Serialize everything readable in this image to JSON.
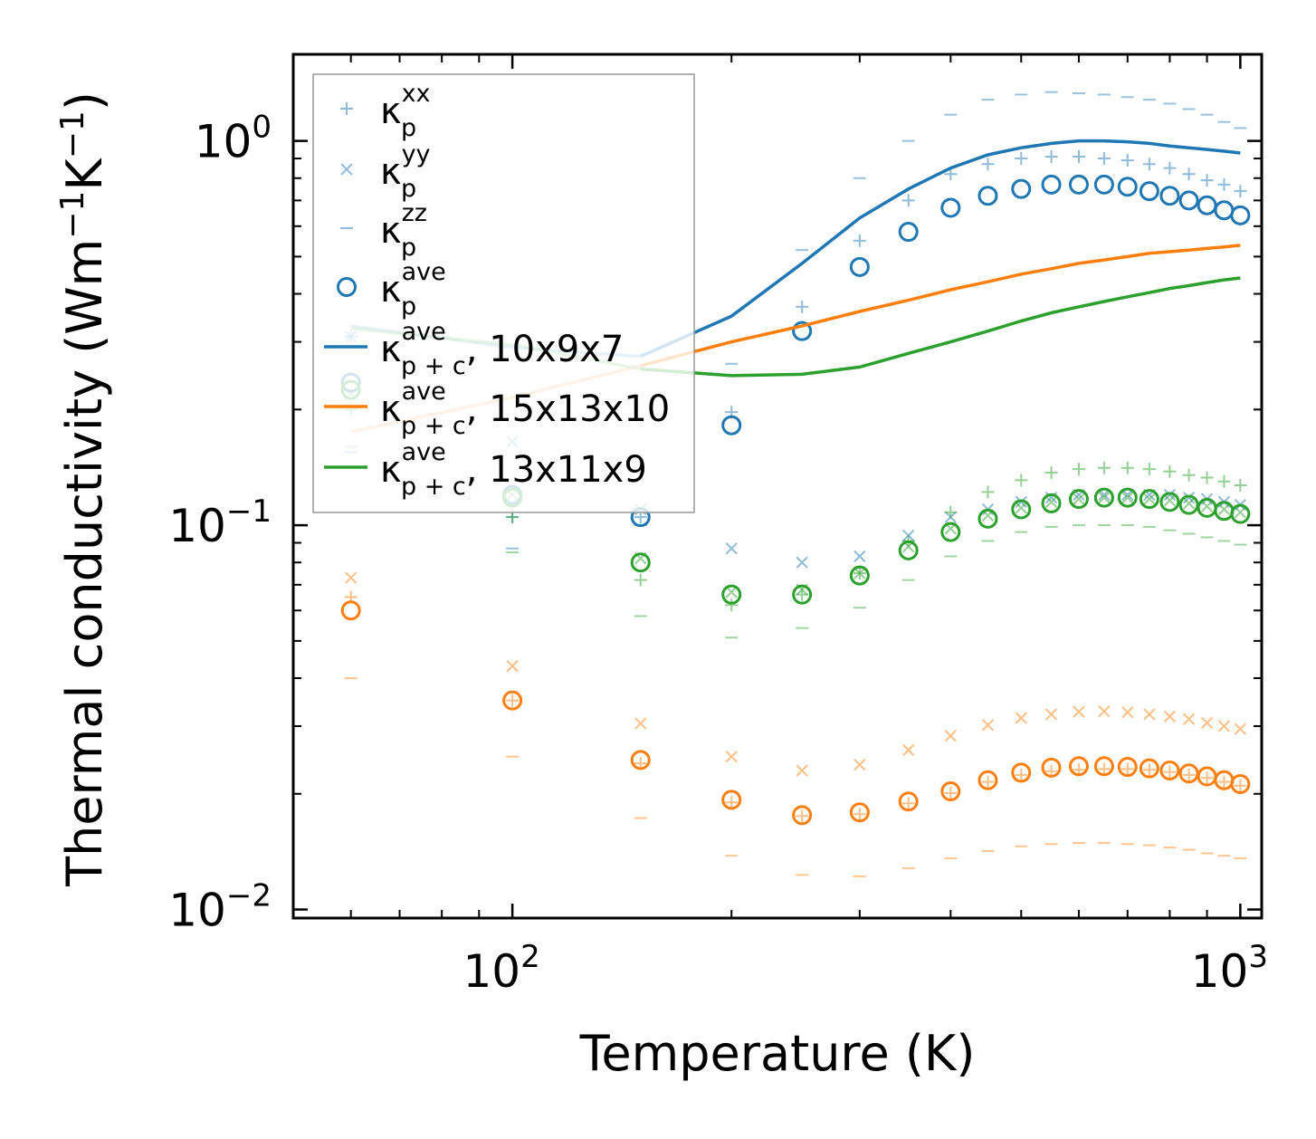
{
  "chart_data": {
    "type": "scatter",
    "xlabel": "Temperature (K)",
    "ylabel": "Thermal conductivity (Wm−1K−1)",
    "ylabel_parts": {
      "main": "Thermal conductivity (Wm",
      "sup1": "−1",
      "mid": "K",
      "sup2": "−1",
      "end": ")"
    },
    "xscale": "log",
    "yscale": "log",
    "xlim": [
      50,
      1070
    ],
    "ylim": [
      0.0095,
      1.68
    ],
    "x_ticks": [
      {
        "value": 100,
        "base": "10",
        "exp": "2"
      },
      {
        "value": 1000,
        "base": "10",
        "exp": "3"
      }
    ],
    "y_ticks": [
      {
        "value": 0.01,
        "base": "10",
        "exp": "−2"
      },
      {
        "value": 0.1,
        "base": "10",
        "exp": "−1"
      },
      {
        "value": 1,
        "base": "10",
        "exp": "0"
      }
    ],
    "colors": {
      "blue": "#1f77b4",
      "orange": "#ff7f0e",
      "green": "#2ca02c"
    },
    "legend": {
      "position": "upper-left",
      "entries": [
        {
          "marker": "plus",
          "symbol": "κ",
          "sub": "p",
          "sup": "xx",
          "suffix": ""
        },
        {
          "marker": "cross",
          "symbol": "κ",
          "sub": "p",
          "sup": "yy",
          "suffix": ""
        },
        {
          "marker": "dash",
          "symbol": "κ",
          "sub": "p",
          "sup": "zz",
          "suffix": ""
        },
        {
          "marker": "circle",
          "symbol": "κ",
          "sub": "p",
          "sup": "ave",
          "suffix": ""
        },
        {
          "marker": "line",
          "color": "#1f77b4",
          "symbol": "κ",
          "sub": "p + c",
          "sup": "ave",
          "suffix": ", 10x9x7"
        },
        {
          "marker": "line",
          "color": "#ff7f0e",
          "symbol": "κ",
          "sub": "p + c",
          "sup": "ave",
          "suffix": ", 15x13x10"
        },
        {
          "marker": "line",
          "color": "#2ca02c",
          "symbol": "κ",
          "sub": "p + c",
          "sup": "ave",
          "suffix": ", 13x11x9"
        }
      ]
    },
    "x": [
      60,
      100,
      150,
      200,
      250,
      300,
      350,
      400,
      450,
      500,
      550,
      600,
      650,
      700,
      750,
      800,
      850,
      900,
      950,
      1000
    ],
    "series": [
      {
        "name": "10x9x7",
        "color": "#1f77b4",
        "xx": [
          0.31,
          0.105,
          0.105,
          0.197,
          0.37,
          0.55,
          0.7,
          0.82,
          0.87,
          0.9,
          0.91,
          0.91,
          0.9,
          0.89,
          0.87,
          0.85,
          0.82,
          0.79,
          0.77,
          0.74
        ],
        "yy": [
          0.31,
          0.165,
          0.11,
          0.087,
          0.08,
          0.083,
          0.094,
          0.105,
          0.11,
          0.115,
          0.118,
          0.12,
          0.12,
          0.12,
          0.12,
          0.12,
          0.118,
          0.117,
          0.115,
          0.113
        ],
        "zz": [
          0.155,
          0.087,
          0.1,
          0.263,
          0.52,
          0.8,
          1.0,
          1.17,
          1.28,
          1.32,
          1.34,
          1.33,
          1.32,
          1.3,
          1.28,
          1.25,
          1.21,
          1.17,
          1.12,
          1.08
        ],
        "ave": [
          0.235,
          0.12,
          0.105,
          0.182,
          0.32,
          0.47,
          0.58,
          0.67,
          0.72,
          0.75,
          0.77,
          0.77,
          0.77,
          0.76,
          0.74,
          0.72,
          0.7,
          0.68,
          0.66,
          0.64
        ],
        "total": [
          0.33,
          0.29,
          0.275,
          0.35,
          0.48,
          0.63,
          0.75,
          0.85,
          0.92,
          0.96,
          0.985,
          1.0,
          1.0,
          0.995,
          0.985,
          0.97,
          0.96,
          0.95,
          0.94,
          0.93
        ]
      },
      {
        "name": "15x13x10",
        "color": "#ff7f0e",
        "xx": [
          0.065,
          0.035,
          0.024,
          0.019,
          0.0175,
          0.0177,
          0.0189,
          0.0201,
          0.0215,
          0.0224,
          0.0229,
          0.0231,
          0.0232,
          0.0232,
          0.0231,
          0.0228,
          0.0224,
          0.022,
          0.0215,
          0.021
        ],
        "yy": [
          0.073,
          0.043,
          0.0305,
          0.025,
          0.023,
          0.0238,
          0.026,
          0.0283,
          0.0302,
          0.0315,
          0.0322,
          0.0327,
          0.0328,
          0.0326,
          0.0322,
          0.0318,
          0.0313,
          0.0306,
          0.03,
          0.0295
        ],
        "zz": [
          0.04,
          0.025,
          0.0173,
          0.0138,
          0.0123,
          0.0122,
          0.0128,
          0.0136,
          0.0142,
          0.0146,
          0.0148,
          0.0149,
          0.0149,
          0.0148,
          0.0147,
          0.0145,
          0.0143,
          0.014,
          0.0138,
          0.0136
        ],
        "ave": [
          0.06,
          0.035,
          0.0245,
          0.0193,
          0.0176,
          0.0179,
          0.0191,
          0.0203,
          0.0217,
          0.0227,
          0.0234,
          0.0236,
          0.0236,
          0.0235,
          0.0233,
          0.023,
          0.0226,
          0.0222,
          0.0217,
          0.0212
        ],
        "total": [
          0.175,
          0.215,
          0.26,
          0.3,
          0.33,
          0.36,
          0.385,
          0.41,
          0.43,
          0.45,
          0.465,
          0.48,
          0.49,
          0.5,
          0.51,
          0.515,
          0.52,
          0.525,
          0.53,
          0.535
        ]
      },
      {
        "name": "13x11x9",
        "color": "#2ca02c",
        "xx": [
          0.2,
          0.105,
          0.072,
          0.062,
          0.066,
          0.075,
          0.091,
          0.108,
          0.122,
          0.131,
          0.137,
          0.14,
          0.141,
          0.141,
          0.14,
          0.138,
          0.135,
          0.133,
          0.13,
          0.127
        ],
        "yy": [
          0.22,
          0.12,
          0.082,
          0.067,
          0.068,
          0.075,
          0.088,
          0.098,
          0.106,
          0.111,
          0.115,
          0.117,
          0.118,
          0.118,
          0.117,
          0.116,
          0.114,
          0.112,
          0.11,
          0.108
        ],
        "zz": [
          0.16,
          0.085,
          0.058,
          0.051,
          0.054,
          0.061,
          0.072,
          0.083,
          0.091,
          0.096,
          0.099,
          0.1,
          0.1,
          0.1,
          0.099,
          0.097,
          0.095,
          0.093,
          0.091,
          0.089
        ],
        "ave": [
          0.225,
          0.118,
          0.08,
          0.066,
          0.066,
          0.074,
          0.086,
          0.096,
          0.104,
          0.11,
          0.114,
          0.117,
          0.118,
          0.118,
          0.117,
          0.115,
          0.113,
          0.111,
          0.109,
          0.107
        ],
        "total": [
          0.325,
          0.295,
          0.255,
          0.245,
          0.247,
          0.258,
          0.28,
          0.3,
          0.32,
          0.34,
          0.357,
          0.37,
          0.382,
          0.393,
          0.403,
          0.413,
          0.42,
          0.428,
          0.435,
          0.44
        ]
      }
    ]
  }
}
